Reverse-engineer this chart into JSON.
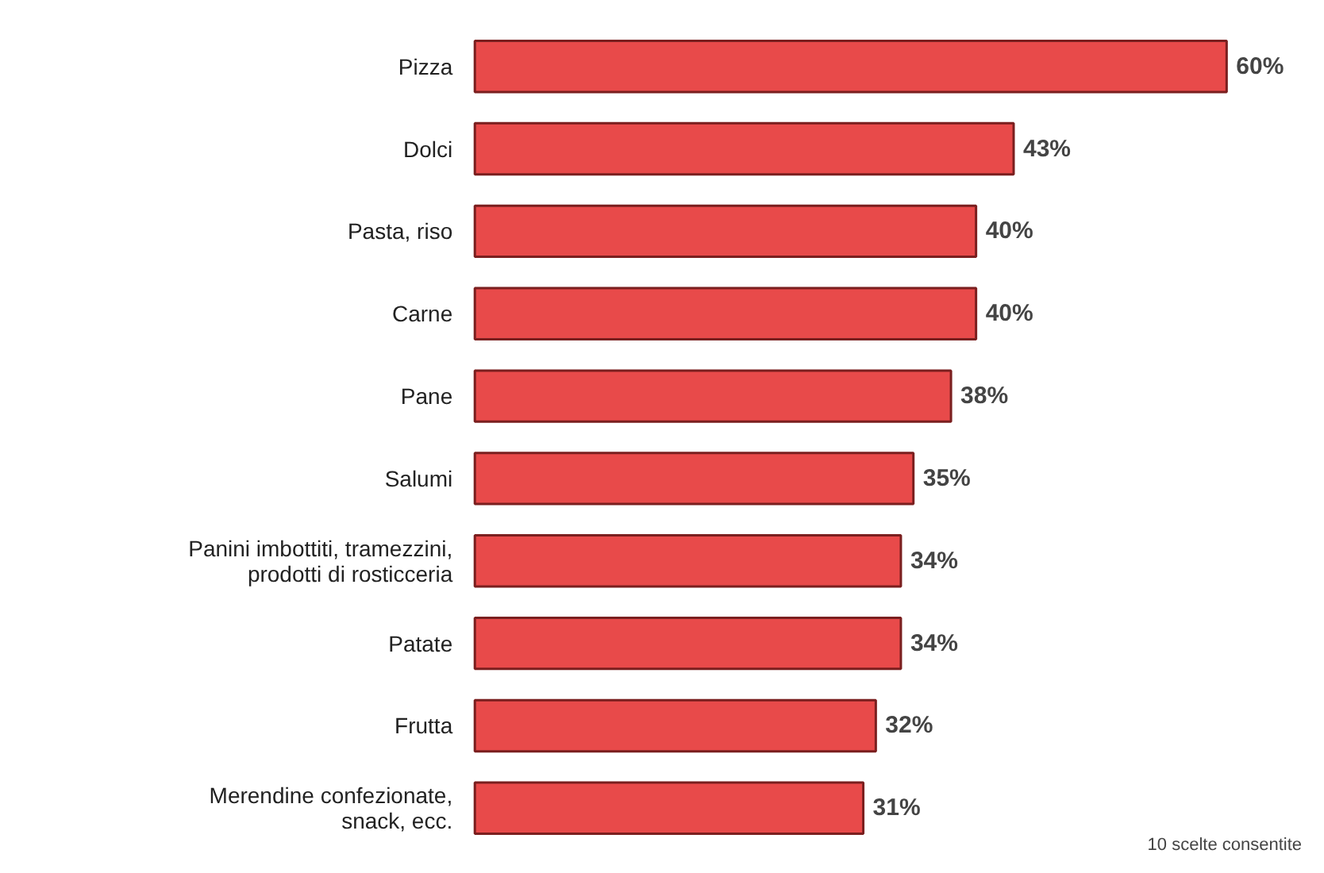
{
  "chart_data": {
    "type": "bar",
    "orientation": "horizontal",
    "categories": [
      "Pizza",
      "Dolci",
      "Pasta, riso",
      "Carne",
      "Pane",
      "Salumi",
      "Panini imbottiti, tramezzini,\nprodotti di rosticceria",
      "Patate",
      "Frutta",
      "Merendine confezionate,\nsnack, ecc."
    ],
    "values": [
      60,
      43,
      40,
      40,
      38,
      35,
      34,
      34,
      32,
      31
    ],
    "value_labels": [
      "60%",
      "43%",
      "40%",
      "40%",
      "38%",
      "35%",
      "34%",
      "34%",
      "32%",
      "31%"
    ],
    "color": "#e84a4a",
    "annotations": [
      "10 scelte consentite"
    ]
  }
}
